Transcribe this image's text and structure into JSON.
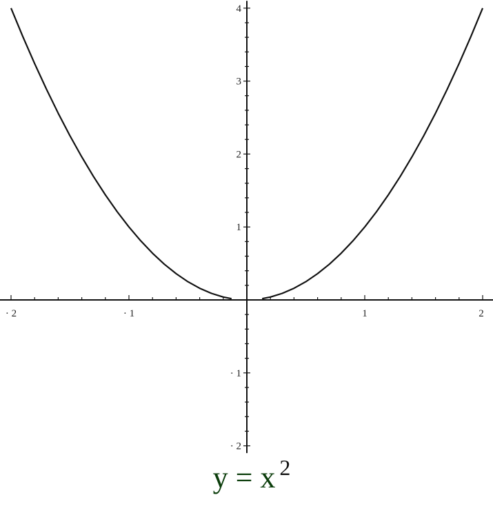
{
  "chart_data": {
    "type": "line",
    "title": "",
    "xlabel": "",
    "ylabel": "",
    "xlim": [
      -2,
      2
    ],
    "ylim": [
      -2.1,
      4.1
    ],
    "grid": false,
    "x_ticks": [
      {
        "value": -2,
        "label": "-2"
      },
      {
        "value": -1,
        "label": "-1"
      },
      {
        "value": 1,
        "label": "1"
      },
      {
        "value": 2,
        "label": "2"
      }
    ],
    "y_ticks": [
      {
        "value": 4,
        "label": "4"
      },
      {
        "value": 3,
        "label": "3"
      },
      {
        "value": 2,
        "label": "2"
      },
      {
        "value": 1,
        "label": "1"
      },
      {
        "value": -1,
        "label": "-1"
      },
      {
        "value": -2,
        "label": "-2"
      }
    ],
    "minor_tick_step": 0.2,
    "series": [
      {
        "segments": [
          {
            "x": [
              -2,
              -1.9,
              -1.8,
              -1.7,
              -1.6,
              -1.5,
              -1.4,
              -1.3,
              -1.2,
              -1.1,
              -1,
              -0.9,
              -0.8,
              -0.7,
              -0.6,
              -0.5,
              -0.4,
              -0.3,
              -0.2,
              -0.13
            ],
            "y": [
              4,
              3.61,
              3.24,
              2.89,
              2.56,
              2.25,
              1.96,
              1.69,
              1.44,
              1.21,
              1,
              0.81,
              0.64,
              0.49,
              0.36,
              0.25,
              0.16,
              0.09,
              0.04,
              0.017
            ]
          },
          {
            "x": [
              0.13,
              0.2,
              0.3,
              0.4,
              0.5,
              0.6,
              0.7,
              0.8,
              0.9,
              1,
              1.1,
              1.2,
              1.3,
              1.4,
              1.5,
              1.6,
              1.7,
              1.8,
              1.9,
              2
            ],
            "y": [
              0.017,
              0.04,
              0.09,
              0.16,
              0.25,
              0.36,
              0.49,
              0.64,
              0.81,
              1,
              1.21,
              1.44,
              1.69,
              1.96,
              2.25,
              2.56,
              2.89,
              3.24,
              3.61,
              4
            ]
          }
        ],
        "color": "#111111"
      }
    ],
    "caption": {
      "lhs": "y = x",
      "exponent": "2"
    },
    "caption_color": "#0b3d0b"
  }
}
